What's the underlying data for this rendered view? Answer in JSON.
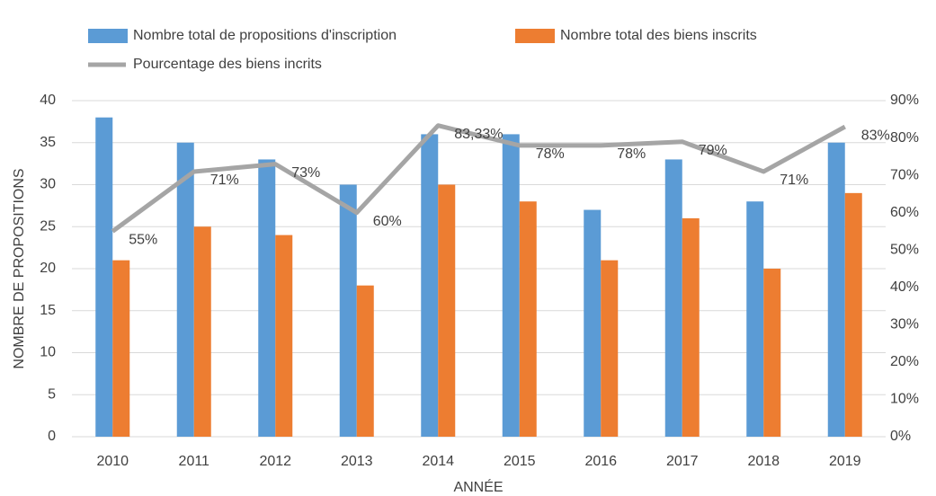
{
  "chart_data": {
    "type": "bar",
    "categories": [
      "2010",
      "2011",
      "2012",
      "2013",
      "2014",
      "2015",
      "2016",
      "2017",
      "2018",
      "2019"
    ],
    "series": [
      {
        "name": "Nombre total de propositions d'inscription",
        "color": "#5b9bd5",
        "values": [
          38,
          35,
          33,
          30,
          36,
          36,
          27,
          33,
          28,
          35
        ]
      },
      {
        "name": "Nombre total des biens inscrits",
        "color": "#ed7d31",
        "values": [
          21,
          25,
          24,
          18,
          30,
          28,
          21,
          26,
          20,
          29
        ]
      },
      {
        "name": "Pourcentage des biens incrits",
        "color": "#a5a5a5",
        "type": "line",
        "axis": "y2",
        "values": [
          55,
          71,
          73,
          60,
          83.33,
          78,
          78,
          79,
          71,
          83
        ],
        "value_labels": [
          "55%",
          "71%",
          "73%",
          "60%",
          "83,33%",
          "78%",
          "78%",
          "79%",
          "71%",
          "83%"
        ]
      }
    ],
    "xlabel": "ANNÉE",
    "ylabel": "NOMBRE DE PROPOSITIONS",
    "ylim": [
      0,
      40
    ],
    "yticks": [
      0,
      5,
      10,
      15,
      20,
      25,
      30,
      35,
      40
    ],
    "y2lim": [
      0,
      90
    ],
    "y2ticks": [
      {
        "value": 0,
        "label": "0%"
      },
      {
        "value": 10,
        "label": "10%"
      },
      {
        "value": 20,
        "label": "20%"
      },
      {
        "value": 30,
        "label": "30%"
      },
      {
        "value": 40,
        "label": "40%"
      },
      {
        "value": 50,
        "label": "50%"
      },
      {
        "value": 60,
        "label": "60%"
      },
      {
        "value": 70,
        "label": "70%"
      },
      {
        "value": 80,
        "label": "80%"
      },
      {
        "value": 90,
        "label": "90%"
      }
    ],
    "grid": true,
    "legend": "top"
  }
}
